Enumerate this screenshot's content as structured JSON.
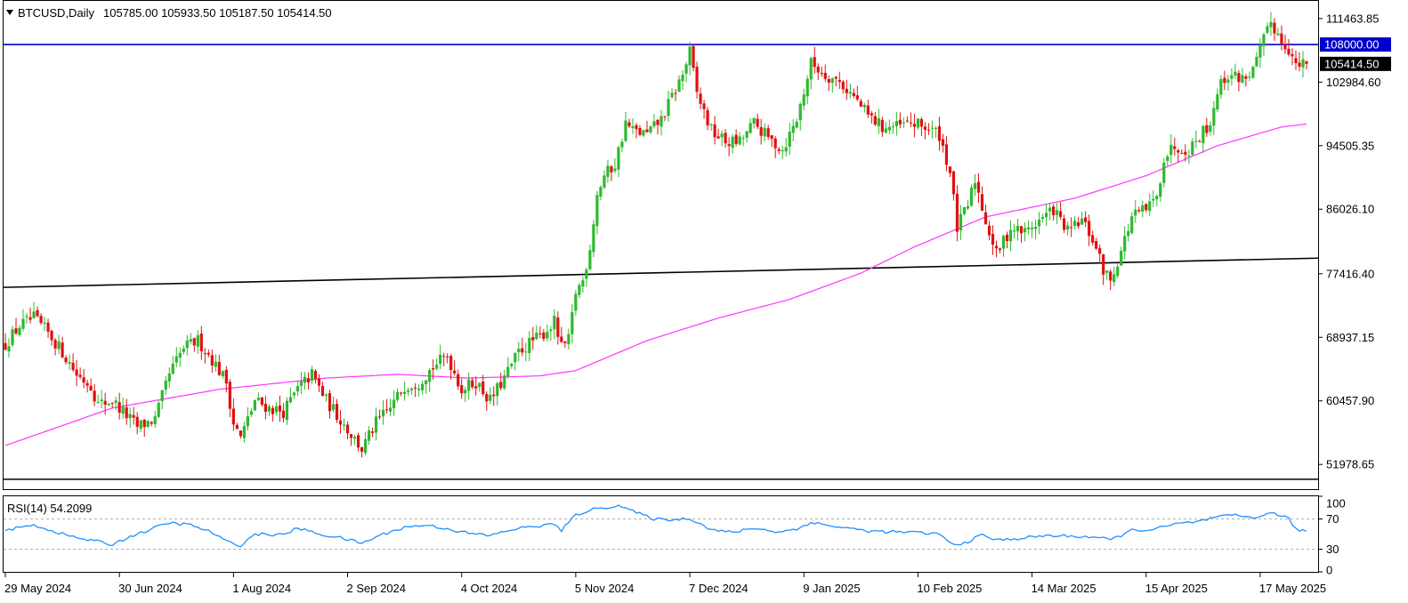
{
  "header": {
    "symbol_label": "BTCUSD,Daily",
    "ohlc_label": "105785.00 105933.50 105187.50 105414.50"
  },
  "rsi": {
    "label": "RSI(14) 54.2099",
    "levels": [
      30,
      70
    ],
    "scale_labels": [
      "100",
      "70",
      "30",
      "0"
    ]
  },
  "price_tags": {
    "resistance": "108000.00",
    "last": "105414.50"
  },
  "colors": {
    "bull": "#2db92d",
    "bear": "#e01010",
    "ma": "#ff33ff",
    "rsi": "#1e90ff",
    "resistance": "#0000cc",
    "trend": "#000000"
  },
  "chart_data": {
    "type": "candlestick",
    "symbol": "BTCUSD",
    "timeframe": "Daily",
    "y_ticks": [
      111463.85,
      102984.6,
      94505.35,
      86026.1,
      77416.4,
      68937.15,
      60457.9,
      51978.65
    ],
    "y_tick_labels": [
      "111463.85",
      "102984.60",
      "94505.35",
      "86026.10",
      "77416.40",
      "68937.15",
      "60457.90",
      "51978.65"
    ],
    "x_tick_labels": [
      "29 May 2024",
      "30 Jun 2024",
      "1 Aug 2024",
      "2 Sep 2024",
      "4 Oct 2024",
      "5 Nov 2024",
      "7 Dec 2024",
      "9 Jan 2025",
      "10 Feb 2025",
      "14 Mar 2025",
      "15 Apr 2025",
      "17 May 2025"
    ],
    "ylim": [
      48800,
      113700
    ],
    "horizontal_lines": [
      {
        "value": 108000,
        "color": "#0000cc"
      },
      {
        "value": 50000,
        "color": "#000000"
      }
    ],
    "trend_line": {
      "start": 75600,
      "end": 79500
    },
    "close_anchors": [
      [
        0,
        68000
      ],
      [
        4,
        70500
      ],
      [
        8,
        71500
      ],
      [
        12,
        69500
      ],
      [
        16,
        67000
      ],
      [
        20,
        64000
      ],
      [
        24,
        62500
      ],
      [
        26,
        60000
      ],
      [
        30,
        60500
      ],
      [
        33,
        59000
      ],
      [
        37,
        57000
      ],
      [
        42,
        58000
      ],
      [
        46,
        64000
      ],
      [
        50,
        67500
      ],
      [
        54,
        68500
      ],
      [
        58,
        66000
      ],
      [
        62,
        63000
      ],
      [
        64,
        57500
      ],
      [
        66,
        55500
      ],
      [
        70,
        60500
      ],
      [
        74,
        59500
      ],
      [
        78,
        59000
      ],
      [
        82,
        62000
      ],
      [
        86,
        64000
      ],
      [
        90,
        60500
      ],
      [
        94,
        58000
      ],
      [
        97,
        56000
      ],
      [
        100,
        54000
      ],
      [
        104,
        57500
      ],
      [
        108,
        59500
      ],
      [
        112,
        62500
      ],
      [
        116,
        63000
      ],
      [
        120,
        65000
      ],
      [
        124,
        66500
      ],
      [
        128,
        62000
      ],
      [
        132,
        63000
      ],
      [
        136,
        60500
      ],
      [
        140,
        63500
      ],
      [
        144,
        67000
      ],
      [
        148,
        68500
      ],
      [
        150,
        69000
      ],
      [
        154,
        71000
      ],
      [
        156,
        67500
      ],
      [
        158,
        68500
      ],
      [
        160,
        75000
      ],
      [
        162,
        76500
      ],
      [
        164,
        81000
      ],
      [
        166,
        88000
      ],
      [
        168,
        90500
      ],
      [
        171,
        92000
      ],
      [
        174,
        97500
      ],
      [
        176,
        96500
      ],
      [
        180,
        96000
      ],
      [
        184,
        98000
      ],
      [
        187,
        101000
      ],
      [
        190,
        104000
      ],
      [
        192,
        107000
      ],
      [
        194,
        101500
      ],
      [
        198,
        96500
      ],
      [
        202,
        95000
      ],
      [
        206,
        95000
      ],
      [
        210,
        97500
      ],
      [
        214,
        95500
      ],
      [
        218,
        94000
      ],
      [
        222,
        98000
      ],
      [
        226,
        105500
      ],
      [
        230,
        104000
      ],
      [
        234,
        103000
      ],
      [
        238,
        101000
      ],
      [
        242,
        98500
      ],
      [
        246,
        97000
      ],
      [
        250,
        97000
      ],
      [
        254,
        97500
      ],
      [
        258,
        97000
      ],
      [
        262,
        96000
      ],
      [
        265,
        91000
      ],
      [
        267,
        83500
      ],
      [
        270,
        86500
      ],
      [
        272,
        90000
      ],
      [
        275,
        84500
      ],
      [
        278,
        80000
      ],
      [
        282,
        83500
      ],
      [
        286,
        83000
      ],
      [
        290,
        84500
      ],
      [
        294,
        86000
      ],
      [
        298,
        83000
      ],
      [
        302,
        84500
      ],
      [
        305,
        82000
      ],
      [
        308,
        78000
      ],
      [
        310,
        76500
      ],
      [
        313,
        80500
      ],
      [
        316,
        85000
      ],
      [
        320,
        86000
      ],
      [
        323,
        87500
      ],
      [
        325,
        93000
      ],
      [
        328,
        94500
      ],
      [
        332,
        94000
      ],
      [
        336,
        96500
      ],
      [
        338,
        97500
      ],
      [
        340,
        102000
      ],
      [
        343,
        104000
      ],
      [
        347,
        103500
      ],
      [
        350,
        104500
      ],
      [
        353,
        108500
      ],
      [
        355,
        111000
      ],
      [
        358,
        108500
      ],
      [
        360,
        107500
      ],
      [
        362,
        105000
      ],
      [
        365,
        105414.5
      ]
    ],
    "ma_anchors": [
      [
        0,
        54500
      ],
      [
        30,
        59500
      ],
      [
        60,
        62000
      ],
      [
        90,
        63500
      ],
      [
        110,
        64000
      ],
      [
        130,
        63500
      ],
      [
        150,
        63800
      ],
      [
        160,
        64500
      ],
      [
        180,
        68500
      ],
      [
        200,
        71500
      ],
      [
        220,
        74000
      ],
      [
        240,
        77500
      ],
      [
        255,
        81000
      ],
      [
        275,
        85000
      ],
      [
        300,
        87500
      ],
      [
        320,
        90500
      ],
      [
        340,
        94500
      ],
      [
        358,
        97000
      ],
      [
        365,
        97400
      ]
    ],
    "rsi_anchors": [
      [
        0,
        55
      ],
      [
        8,
        62
      ],
      [
        14,
        53
      ],
      [
        20,
        45
      ],
      [
        26,
        40
      ],
      [
        30,
        36
      ],
      [
        34,
        45
      ],
      [
        40,
        55
      ],
      [
        46,
        65
      ],
      [
        52,
        62
      ],
      [
        58,
        52
      ],
      [
        62,
        40
      ],
      [
        66,
        35
      ],
      [
        70,
        50
      ],
      [
        78,
        49
      ],
      [
        82,
        58
      ],
      [
        88,
        50
      ],
      [
        94,
        45
      ],
      [
        100,
        38
      ],
      [
        106,
        50
      ],
      [
        112,
        59
      ],
      [
        118,
        62
      ],
      [
        124,
        57
      ],
      [
        130,
        51
      ],
      [
        136,
        48
      ],
      [
        142,
        56
      ],
      [
        148,
        60
      ],
      [
        154,
        63
      ],
      [
        156,
        55
      ],
      [
        160,
        75
      ],
      [
        164,
        82
      ],
      [
        168,
        85
      ],
      [
        172,
        88
      ],
      [
        176,
        80
      ],
      [
        182,
        70
      ],
      [
        188,
        69
      ],
      [
        192,
        71
      ],
      [
        198,
        56
      ],
      [
        204,
        52
      ],
      [
        210,
        58
      ],
      [
        216,
        53
      ],
      [
        222,
        56
      ],
      [
        226,
        66
      ],
      [
        230,
        62
      ],
      [
        236,
        58
      ],
      [
        242,
        54
      ],
      [
        248,
        53
      ],
      [
        256,
        52
      ],
      [
        262,
        50
      ],
      [
        266,
        35
      ],
      [
        270,
        40
      ],
      [
        274,
        49
      ],
      [
        278,
        42
      ],
      [
        284,
        44
      ],
      [
        292,
        48
      ],
      [
        300,
        47
      ],
      [
        306,
        46
      ],
      [
        310,
        42
      ],
      [
        316,
        55
      ],
      [
        322,
        56
      ],
      [
        328,
        63
      ],
      [
        334,
        66
      ],
      [
        340,
        72
      ],
      [
        344,
        75
      ],
      [
        350,
        72
      ],
      [
        356,
        78
      ],
      [
        360,
        70
      ],
      [
        362,
        56
      ],
      [
        365,
        54.2
      ]
    ],
    "rsi_ylim": [
      0,
      100
    ],
    "rsi_value": 54.2099
  }
}
